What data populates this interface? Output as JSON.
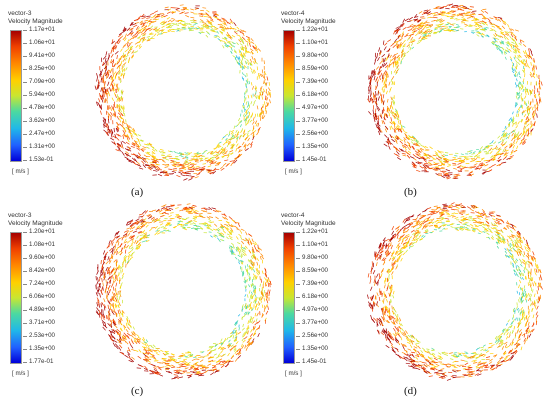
{
  "panels": [
    {
      "id": "a",
      "legend": {
        "name": "vector-3",
        "title": "Velocity Magnitude",
        "ticks": [
          "1.17e+01",
          "1.06e+01",
          "9.41e+00",
          "8.25e+00",
          "7.09e+00",
          "5.94e+00",
          "4.78e+00",
          "3.62e+00",
          "2.47e+00",
          "1.31e+00",
          "1.53e-01"
        ],
        "unit": "[ m/s ]"
      },
      "caption": "(a)"
    },
    {
      "id": "b",
      "legend": {
        "name": "vector-4",
        "title": "Velocity Magnitude",
        "ticks": [
          "1.22e+01",
          "1.10e+01",
          "9.80e+00",
          "8.59e+00",
          "7.39e+00",
          "6.18e+00",
          "4.97e+00",
          "3.77e+00",
          "2.56e+00",
          "1.35e+00",
          "1.45e-01"
        ],
        "unit": "[ m/s ]"
      },
      "caption": "(b)"
    },
    {
      "id": "c",
      "legend": {
        "name": "vector-3",
        "title": "Velocity Magnitude",
        "ticks": [
          "1.20e+01",
          "1.08e+01",
          "9.60e+00",
          "8.42e+00",
          "7.24e+00",
          "6.06e+00",
          "4.89e+00",
          "3.71e+00",
          "2.53e+00",
          "1.35e+00",
          "1.77e-01"
        ],
        "unit": "[ m/s ]"
      },
      "caption": "(c)"
    },
    {
      "id": "d",
      "legend": {
        "name": "vector-4",
        "title": "Velocity Magnitude",
        "ticks": [
          "1.22e+01",
          "1.10e+01",
          "9.80e+00",
          "8.59e+00",
          "7.39e+00",
          "6.18e+00",
          "4.97e+00",
          "3.77e+00",
          "2.56e+00",
          "1.35e+00",
          "1.45e-01"
        ],
        "unit": "[ m/s ]"
      },
      "caption": "(d)"
    }
  ]
}
